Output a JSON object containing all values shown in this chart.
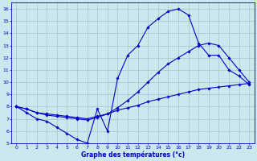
{
  "xlabel": "Graphe des températures (°c)",
  "xlim": [
    -0.5,
    23.5
  ],
  "ylim": [
    5,
    16.5
  ],
  "yticks": [
    5,
    6,
    7,
    8,
    9,
    10,
    11,
    12,
    13,
    14,
    15,
    16
  ],
  "xticks": [
    0,
    1,
    2,
    3,
    4,
    5,
    6,
    7,
    8,
    9,
    10,
    11,
    12,
    13,
    14,
    15,
    16,
    17,
    18,
    19,
    20,
    21,
    22,
    23
  ],
  "background_color": "#cce8ee",
  "grid_color": "#aacccc",
  "line_color": "#0000cc",
  "line1_x": [
    0,
    1,
    2,
    3,
    4,
    5,
    6,
    7,
    8,
    9,
    10,
    11,
    12,
    13,
    14,
    15,
    16,
    17,
    18,
    19,
    20,
    21,
    22,
    23
  ],
  "line1_y": [
    8.0,
    7.5,
    7.0,
    6.8,
    6.3,
    5.8,
    5.3,
    5.0,
    7.8,
    6.0,
    10.3,
    12.2,
    13.0,
    14.5,
    15.2,
    15.8,
    16.0,
    15.5,
    13.2,
    12.2,
    12.2,
    11.0,
    10.5,
    9.8
  ],
  "line2_x": [
    0,
    1,
    2,
    3,
    4,
    5,
    6,
    7,
    8,
    9,
    10,
    11,
    12,
    13,
    14,
    15,
    16,
    17,
    18,
    19,
    20,
    21,
    22,
    23
  ],
  "line2_y": [
    8.0,
    7.8,
    7.5,
    7.4,
    7.3,
    7.2,
    7.1,
    7.0,
    7.2,
    7.4,
    7.7,
    7.9,
    8.1,
    8.4,
    8.6,
    8.8,
    9.0,
    9.2,
    9.4,
    9.5,
    9.6,
    9.7,
    9.8,
    9.9
  ],
  "line3_x": [
    0,
    1,
    2,
    3,
    4,
    5,
    6,
    7,
    8,
    9,
    10,
    11,
    12,
    13,
    14,
    15,
    16,
    17,
    18,
    19,
    20,
    21,
    22,
    23
  ],
  "line3_y": [
    8.0,
    7.8,
    7.5,
    7.3,
    7.2,
    7.1,
    7.0,
    6.9,
    7.1,
    7.4,
    7.9,
    8.5,
    9.2,
    10.0,
    10.8,
    11.5,
    12.0,
    12.5,
    13.0,
    13.2,
    13.0,
    12.0,
    11.0,
    10.0
  ]
}
